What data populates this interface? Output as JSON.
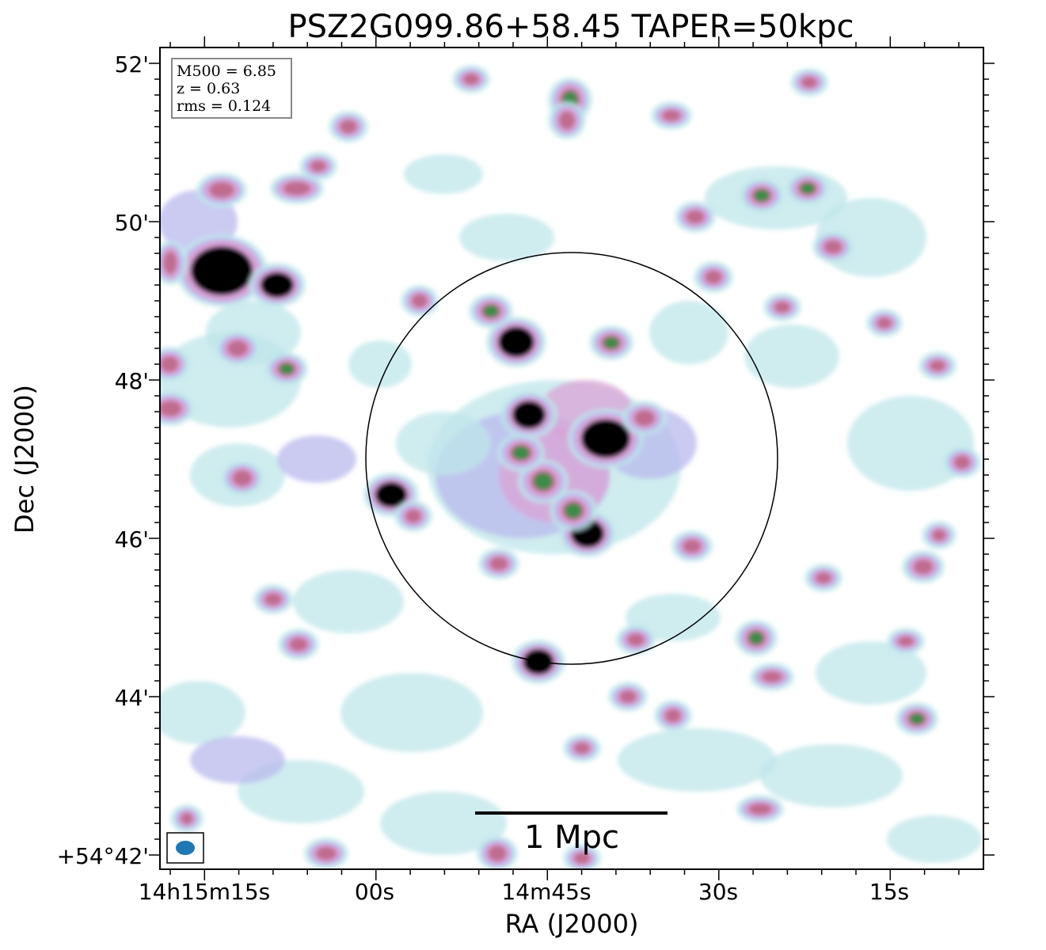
{
  "title": "PSZ2G099.86+58.45 TAPER=50kpc",
  "xlabel": "RA (J2000)",
  "ylabel": "Dec (J2000)",
  "x_ticks": [
    "14h15m15s",
    "00s",
    "14m45s",
    "30s",
    "15s"
  ],
  "y_ticks": [
    "52'",
    "50'",
    "48'",
    "46'",
    "44'",
    "+54°42'"
  ],
  "info_box": {
    "m500": "M500 = 6.85",
    "z": "z = 0.63",
    "rms": "rms = 0.124"
  },
  "scalebar_label": "1 Mpc",
  "colors": {
    "faint": "#bfe6ea",
    "low": "#b9b9ee",
    "mid": "#d9a3d6",
    "high": "#c06c8f",
    "peak": "#3e8a4a",
    "saturated": "#000000",
    "beam": "#1f77b4"
  }
}
